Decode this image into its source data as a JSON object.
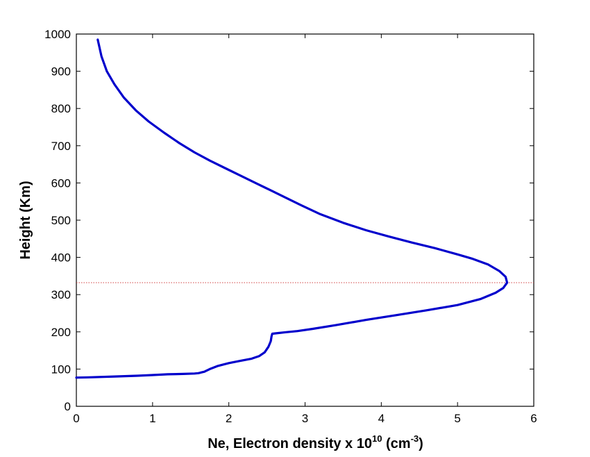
{
  "chart_data": {
    "type": "line",
    "title": "",
    "xlabel": {
      "main": "Ne, Electron density x 10",
      "exponent": "10",
      "unit_open": " (cm",
      "unit_exponent": "-3",
      "unit_close": ")"
    },
    "ylabel": "Height (Km)",
    "xlim": [
      0,
      6
    ],
    "ylim": [
      0,
      1000
    ],
    "xticks": [
      0,
      1,
      2,
      3,
      4,
      5,
      6
    ],
    "yticks": [
      0,
      100,
      200,
      300,
      400,
      500,
      600,
      700,
      800,
      900,
      1000
    ],
    "grid": false,
    "legend": "none",
    "series": [
      {
        "color": "#0000cc",
        "style": "solid",
        "x": [
          0.0,
          0.2,
          0.5,
          0.8,
          1.0,
          1.2,
          1.4,
          1.55,
          1.6,
          1.62,
          1.64,
          1.66,
          1.68,
          1.7,
          1.75,
          1.85,
          2.0,
          2.15,
          2.3,
          2.4,
          2.47,
          2.52,
          2.55,
          2.56,
          2.57,
          2.62,
          2.75,
          2.9,
          3.1,
          3.4,
          3.8,
          4.2,
          4.6,
          5.0,
          5.3,
          5.5,
          5.6,
          5.65,
          5.63,
          5.55,
          5.4,
          5.2,
          5.0,
          4.7,
          4.4,
          4.1,
          3.8,
          3.5,
          3.2,
          2.95,
          2.75,
          2.55,
          2.35,
          2.15,
          1.95,
          1.75,
          1.55,
          1.35,
          1.15,
          0.95,
          0.78,
          0.62,
          0.5,
          0.4,
          0.33,
          0.28
        ],
        "y": [
          77,
          78,
          80,
          82,
          84,
          86,
          87,
          88,
          89,
          90,
          91,
          92,
          93,
          95,
          100,
          108,
          116,
          122,
          128,
          135,
          145,
          160,
          175,
          188,
          195,
          196,
          199,
          202,
          208,
          218,
          232,
          245,
          258,
          272,
          288,
          305,
          318,
          332,
          348,
          363,
          381,
          396,
          408,
          425,
          440,
          456,
          473,
          493,
          516,
          540,
          560,
          580,
          600,
          620,
          640,
          660,
          682,
          707,
          735,
          765,
          795,
          830,
          865,
          900,
          940,
          985
        ]
      }
    ],
    "reference_lines": [
      {
        "orientation": "horizontal",
        "y": 332,
        "color": "#d04040",
        "style": "dotted"
      }
    ]
  }
}
